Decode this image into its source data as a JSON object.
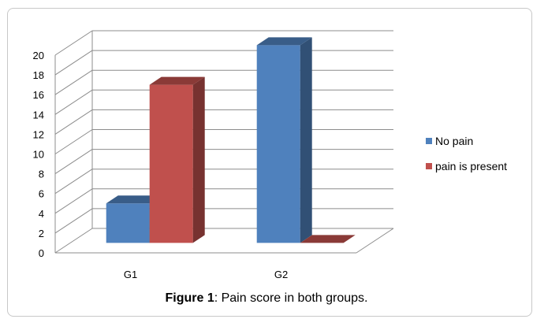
{
  "caption": {
    "label": "Figure 1",
    "text": ": Pain score in both groups."
  },
  "colors": {
    "no_pain": "#4F81BD",
    "pain_present": "#C0504D"
  },
  "chart_data": {
    "type": "bar",
    "style": "3d-clustered-column",
    "categories": [
      "G1",
      "G2"
    ],
    "series": [
      {
        "name": "No pain",
        "values": [
          4,
          20
        ],
        "color": "#4F81BD"
      },
      {
        "name": "pain is present",
        "values": [
          16,
          0
        ],
        "color": "#C0504D"
      }
    ],
    "yticks": [
      0,
      2,
      4,
      6,
      8,
      10,
      12,
      14,
      16,
      18,
      20
    ],
    "ylim": [
      0,
      20
    ],
    "grid": true,
    "legend_position": "right"
  }
}
